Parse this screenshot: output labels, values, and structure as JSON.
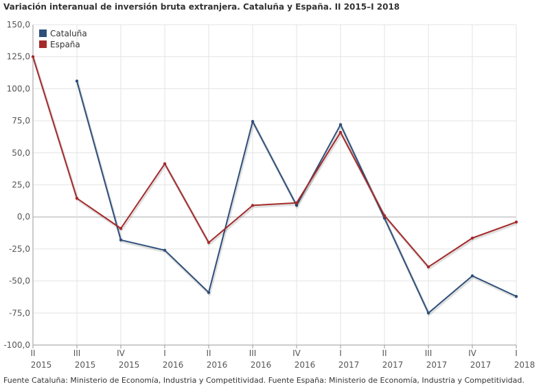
{
  "title": "Variación interanual de inversión bruta extranjera. Cataluña y España. II 2015–I 2018",
  "source": "Fuente Cataluña: Ministerio de Economía, Industria y Competitividad. Fuente España: Ministerio de Economía, Industria y Competitividad.",
  "chart_data": {
    "type": "line",
    "title": "Variación interanual de inversión bruta extranjera. Cataluña y España. II 2015–I 2018",
    "xlabel": "",
    "ylabel": "",
    "ylim": [
      -100,
      150
    ],
    "yticks": [
      150,
      125,
      100,
      75,
      50,
      25,
      0,
      -25,
      -50,
      -75,
      -100
    ],
    "ytick_labels": [
      "150,0",
      "125,0",
      "100,0",
      "75,0",
      "50,0",
      "25,0",
      "0,0",
      "-25,0",
      "-50,0",
      "-75,0",
      "-100,0"
    ],
    "grid": true,
    "legend_position": "top-left",
    "categories": [
      {
        "quarter": "II",
        "year": "2015"
      },
      {
        "quarter": "III",
        "year": "2015"
      },
      {
        "quarter": "IV",
        "year": "2015"
      },
      {
        "quarter": "I",
        "year": "2016"
      },
      {
        "quarter": "II",
        "year": "2016"
      },
      {
        "quarter": "III",
        "year": "2016"
      },
      {
        "quarter": "IV",
        "year": "2016"
      },
      {
        "quarter": "I",
        "year": "2017"
      },
      {
        "quarter": "II",
        "year": "2017"
      },
      {
        "quarter": "III",
        "year": "2017"
      },
      {
        "quarter": "IV",
        "year": "2017"
      },
      {
        "quarter": "I",
        "year": "2018"
      }
    ],
    "series": [
      {
        "name": "Cataluña",
        "color": "#2e4f7a",
        "values": [
          null,
          106,
          -18,
          -26,
          -59,
          74.5,
          9,
          72,
          -1,
          -75,
          -46,
          -62
        ]
      },
      {
        "name": "España",
        "color": "#a52a2a",
        "values": [
          125,
          14.5,
          -9,
          41.5,
          -20,
          9,
          11,
          66,
          1,
          -39,
          -16.5,
          -4
        ]
      }
    ]
  }
}
